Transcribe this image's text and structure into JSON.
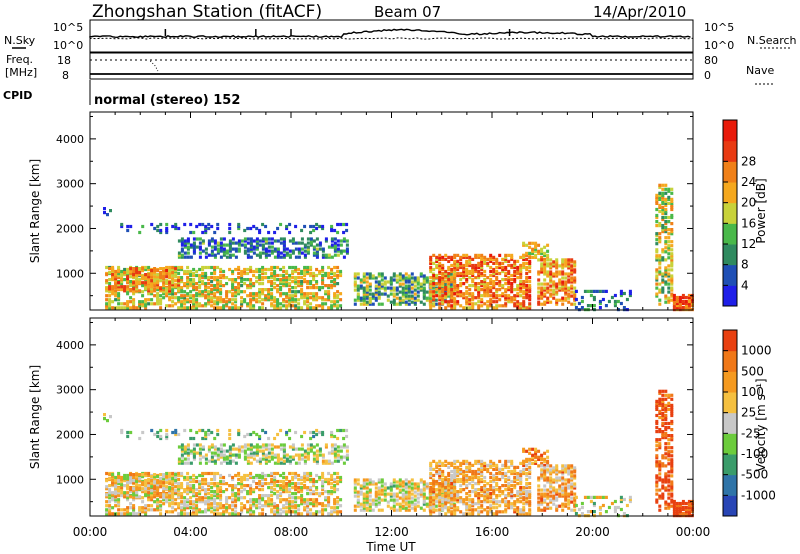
{
  "header": {
    "station": "Zhongshan Station (fitACF)",
    "beam": "Beam 07",
    "date": "14/Apr/2010"
  },
  "top_panels": {
    "nsky_label": "N.Sky",
    "nsearch_label": "N.Search",
    "noise_tick_high": "10^5",
    "noise_tick_low": "10^0",
    "freq_label_1": "Freq.",
    "freq_label_2": "[MHz]",
    "freq_tick_high": "18",
    "freq_tick_low": "8",
    "nave_label": "Nave",
    "nave_tick_high": "80",
    "nave_tick_low": "0",
    "cpid_label": "CPID",
    "cpid_value": "normal (stereo) 152"
  },
  "axes": {
    "ylabel": "Slant Range [km]",
    "yticks": [
      "1000",
      "2000",
      "3000",
      "4000"
    ],
    "xticks": [
      "00:00",
      "04:00",
      "08:00",
      "12:00",
      "16:00",
      "20:00",
      "00:00"
    ],
    "xlabel": "Time UT"
  },
  "colorbars": {
    "power": {
      "label": "Power [dB]",
      "ticks": [
        "4",
        "8",
        "12",
        "16",
        "20",
        "24",
        "28"
      ],
      "colors": [
        "#1f1fe8",
        "#1f4fb5",
        "#2f8a5f",
        "#49b84a",
        "#c8d23a",
        "#f5a81e",
        "#f08018",
        "#e83a12",
        "#e81a0a"
      ]
    },
    "velocity": {
      "label": "Velocity [m s⁻¹]",
      "ticks": [
        "1000",
        "500",
        "100",
        "25",
        "-25",
        "-100",
        "-500",
        "-1000"
      ],
      "colors": [
        "#2845b5",
        "#2f74a8",
        "#3a9c6a",
        "#6ccc3c",
        "#c8c8c8",
        "#f5c040",
        "#f59a20",
        "#f07818",
        "#e84010"
      ]
    }
  },
  "chart_data": [
    {
      "type": "line",
      "title": "Zhongshan Station (fitACF) Beam 07 14/Apr/2010",
      "series": [
        {
          "name": "N.Sky"
        },
        {
          "name": "N.Search"
        },
        {
          "name": "Freq."
        },
        {
          "name": "Nave"
        }
      ],
      "x_range": [
        "00:00",
        "24:00"
      ]
    },
    {
      "type": "heatmap",
      "quantity": "Power [dB]",
      "xlabel": "Time UT",
      "ylabel": "Slant Range [km]",
      "x_range_hours": [
        0,
        24
      ],
      "ylim": [
        180,
        4600
      ],
      "color_range": [
        0,
        30
      ]
    },
    {
      "type": "heatmap",
      "quantity": "Velocity [m s⁻¹]",
      "xlabel": "Time UT",
      "ylabel": "Slant Range [km]",
      "x_range_hours": [
        0,
        24
      ],
      "ylim": [
        180,
        4600
      ],
      "color_range": [
        -1000,
        1000
      ]
    }
  ]
}
